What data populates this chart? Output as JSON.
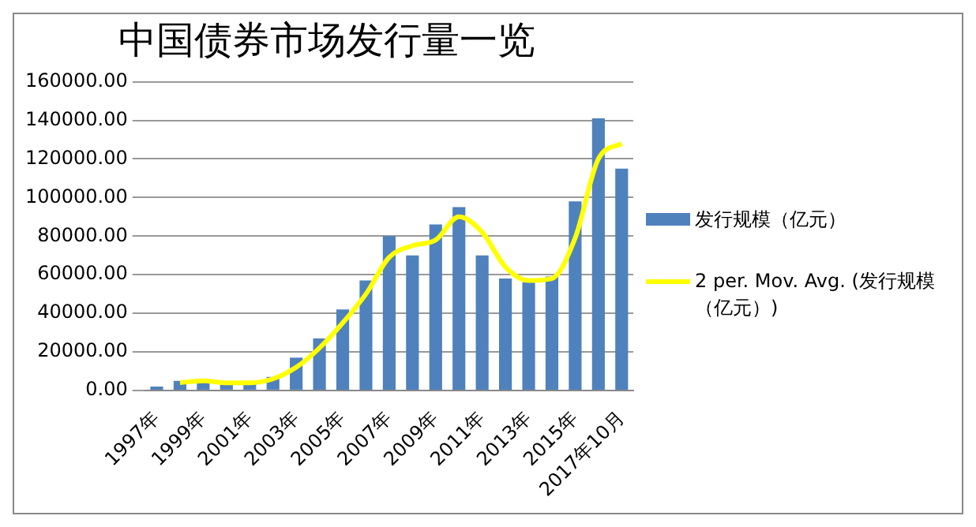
{
  "chart_data": {
    "type": "bar",
    "title": "中国债券市场发行量一览",
    "categories": [
      "1997年",
      null,
      "1999年",
      null,
      "2001年",
      null,
      "2003年",
      null,
      "2005年",
      null,
      "2007年",
      null,
      "2009年",
      null,
      "2011年",
      null,
      "2013年",
      null,
      "2015年",
      null,
      "2017年10月"
    ],
    "series": [
      {
        "name": "发行规模（亿元）",
        "color": "#4f81bd",
        "values": [
          2000,
          5000,
          4000,
          3000,
          4000,
          7000,
          17000,
          27000,
          42000,
          57000,
          80000,
          70000,
          86000,
          95000,
          70000,
          58000,
          56000,
          59000,
          98000,
          141000,
          115000
        ]
      },
      {
        "name": "2 per. Mov. Avg. (发行规模（亿元）)",
        "type": "line",
        "color": "#ffff00",
        "values": [
          null,
          4000,
          5000,
          4000,
          4000,
          6000,
          12000,
          22000,
          35000,
          50000,
          69000,
          75000,
          78000,
          90000,
          82000,
          64000,
          57000,
          58000,
          79000,
          120000,
          128000
        ]
      }
    ],
    "ylim": [
      0,
      160000
    ],
    "yticks": [
      {
        "value": 0,
        "label": "0.00"
      },
      {
        "value": 20000,
        "label": "20000.00"
      },
      {
        "value": 40000,
        "label": "40000.00"
      },
      {
        "value": 60000,
        "label": "60000.00"
      },
      {
        "value": 80000,
        "label": "80000.00"
      },
      {
        "value": 100000,
        "label": "100000.00"
      },
      {
        "value": 120000,
        "label": "120000.00"
      },
      {
        "value": 140000,
        "label": "140000.00"
      },
      {
        "value": 160000,
        "label": "160000.00"
      }
    ],
    "grid": "y",
    "legend": "right",
    "marker": "none",
    "line_style": "solid"
  }
}
